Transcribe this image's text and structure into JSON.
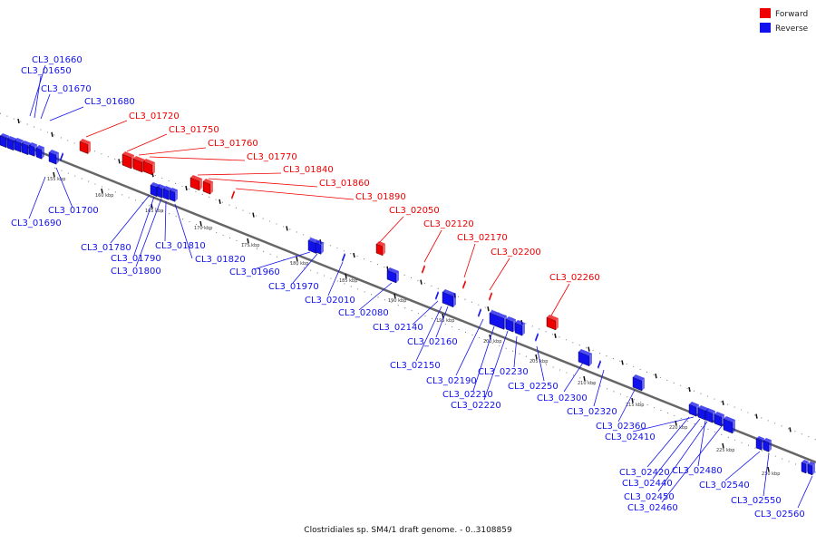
{
  "legend": {
    "forward_label": "Forward",
    "reverse_label": "Reverse",
    "forward_color": "#ee0000",
    "reverse_color": "#1111ee"
  },
  "caption": "Clostridiales sp. SM4/1 draft genome. - 0..3108859",
  "colors": {
    "forward": "#ee0000",
    "reverse": "#1111ee",
    "backbone": "#666666"
  },
  "tick_labels": [
    "155 kbp",
    "160 kbp",
    "165 kbp",
    "170 kbp",
    "175 kbp",
    "180 kbp",
    "185 kbp",
    "190 kbp",
    "195 kbp",
    "200 kbp",
    "205 kbp",
    "210 kbp",
    "215 kbp",
    "220 kbp",
    "225 kbp",
    "230 kbp"
  ],
  "forward_genes": [
    "CL3_01720",
    "CL3_01750",
    "CL3_01760",
    "CL3_01770",
    "CL3_01840",
    "CL3_01860",
    "CL3_01890",
    "CL3_02050",
    "CL3_02120",
    "CL3_02170",
    "CL3_02200",
    "CL3_02260"
  ],
  "reverse_genes_top": [
    "CL3_01660",
    "CL3_01650",
    "CL3_01670",
    "CL3_01680"
  ],
  "reverse_genes": [
    "CL3_01690",
    "CL3_01700",
    "CL3_01780",
    "CL3_01790",
    "CL3_01800",
    "CL3_01810",
    "CL3_01820",
    "CL3_01960",
    "CL3_01970",
    "CL3_02010",
    "CL3_02080",
    "CL3_02140",
    "CL3_02160",
    "CL3_02150",
    "CL3_02190",
    "CL3_02210",
    "CL3_02220",
    "CL3_02230",
    "CL3_02250",
    "CL3_02300",
    "CL3_02320",
    "CL3_02360",
    "CL3_02410",
    "CL3_02420",
    "CL3_02480",
    "CL3_02440",
    "CL3_02450",
    "CL3_02460",
    "CL3_02540",
    "CL3_02550",
    "CL3_02560"
  ]
}
